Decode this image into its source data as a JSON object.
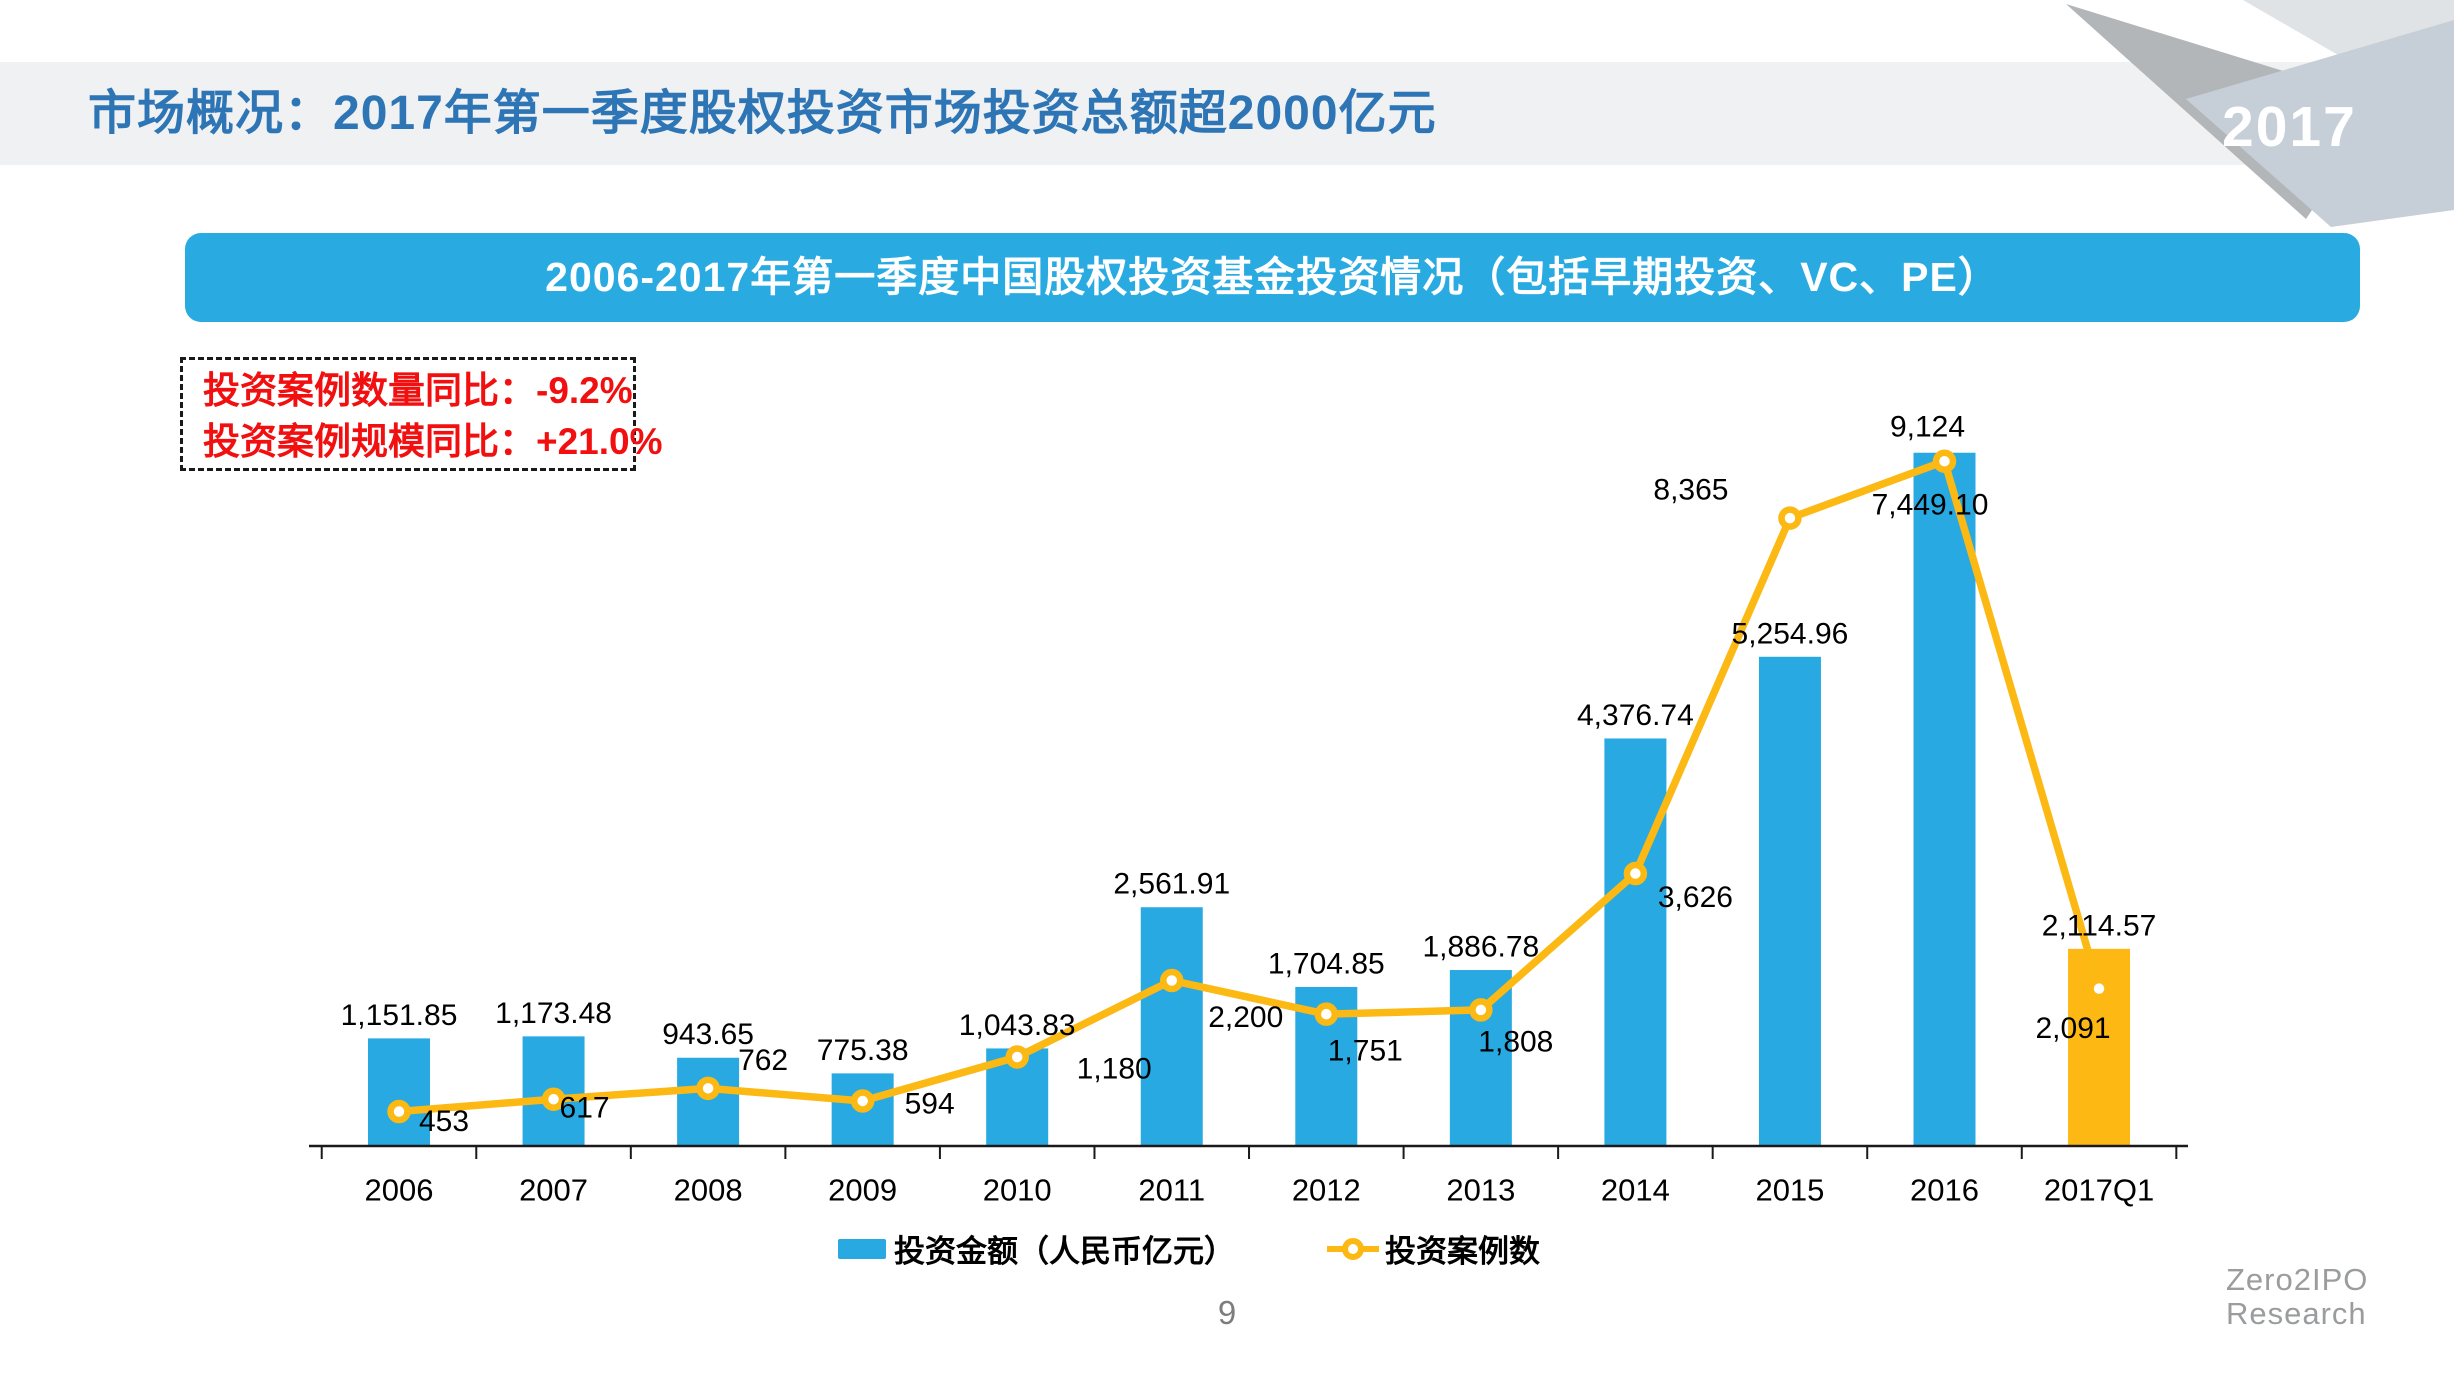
{
  "header": {
    "title": "市场概况：2017年第一季度股权投资市场投资总额超2000亿元",
    "title_color": "#2E75B6",
    "year_badge": "2017"
  },
  "banner": {
    "text": "2006-2017年第一季度中国股权投资基金投资情况（包括早期投资、VC、PE）",
    "color": "#29ABE2"
  },
  "stats": {
    "line1": "投资案例数量同比：-9.2%",
    "line2": "投资案例规模同比：+21.0%",
    "color": "#F10F0F"
  },
  "chart_data": {
    "type": "bar+line",
    "title": "2006-2017年第一季度中国股权投资基金投资情况（包括早期投资、VC、PE）",
    "categories": [
      "2006",
      "2007",
      "2008",
      "2009",
      "2010",
      "2011",
      "2012",
      "2013",
      "2014",
      "2015",
      "2016",
      "2017Q1"
    ],
    "series": [
      {
        "name": "投资金额（人民币亿元）",
        "type": "bar",
        "color": "#29A9E1",
        "highlight_category": "2017Q1",
        "highlight_color": "#FDB813",
        "values": [
          1151.85,
          1173.48,
          943.65,
          775.38,
          1043.83,
          2561.91,
          1704.85,
          1886.78,
          4376.74,
          5254.96,
          7449.1,
          2114.57
        ],
        "labels": [
          "1,151.85",
          "1,173.48",
          "943.65",
          "775.38",
          "1,043.83",
          "2,561.91",
          "1,704.85",
          "1,886.78",
          "4,376.74",
          "5,254.96",
          "7,449.10",
          "2,114.57"
        ]
      },
      {
        "name": "投资案例数",
        "type": "line",
        "color": "#FCB813",
        "values": [
          453,
          617,
          762,
          594,
          1180,
          2200,
          1751,
          1808,
          3626,
          8365,
          9124,
          2091
        ],
        "labels": [
          "453",
          "617",
          "762",
          "594",
          "1,180",
          "2,200",
          "1,751",
          "1,808",
          "3,626",
          "8,365",
          "9,124",
          "2,091"
        ]
      }
    ],
    "axes": {
      "gridlines": false,
      "y_axis_visible": false,
      "x_axis_visible": true
    }
  },
  "footer": {
    "page_number": "9",
    "logo_line1": "Zero2IPO",
    "logo_line2": "Research"
  }
}
